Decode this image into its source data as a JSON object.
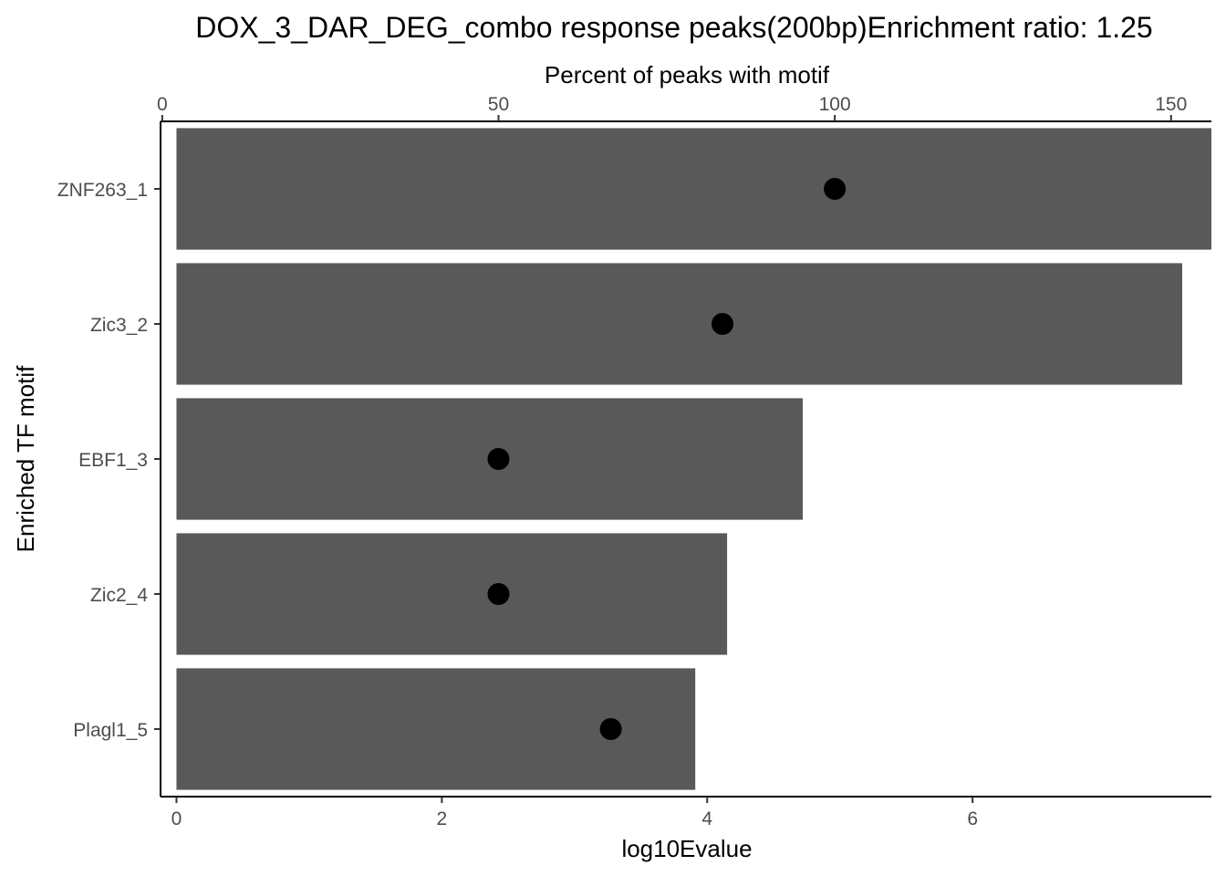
{
  "chart_data": {
    "type": "bar",
    "title": "DOX_3_DAR_DEG_combo response peaks(200bp)Enrichment ratio: 1.25",
    "ylabel": "Enriched TF motif",
    "xlabel": "log10Evalue",
    "x2label": "Percent of peaks with motif",
    "categories": [
      "ZNF263_1",
      "Zic3_2",
      "EBF1_3",
      "Zic2_4",
      "Plagl1_5"
    ],
    "series": [
      {
        "values": [
          7.8,
          7.58,
          4.72,
          4.15,
          3.91
        ],
        "mark": "bar",
        "color": "#595959",
        "axis": "bottom"
      },
      {
        "values": [
          100,
          83.3,
          50,
          50,
          66.7
        ],
        "mark": "point",
        "color": "#000000",
        "axis": "top"
      }
    ],
    "xlim": [
      -0.12,
      7.8
    ],
    "xticks": [
      0,
      2,
      4,
      6
    ],
    "x2lim": [
      -0.25,
      156
    ],
    "x2ticks": [
      0,
      50,
      100,
      150
    ],
    "orientation": "horizontal",
    "grid": false,
    "legend": "none"
  }
}
